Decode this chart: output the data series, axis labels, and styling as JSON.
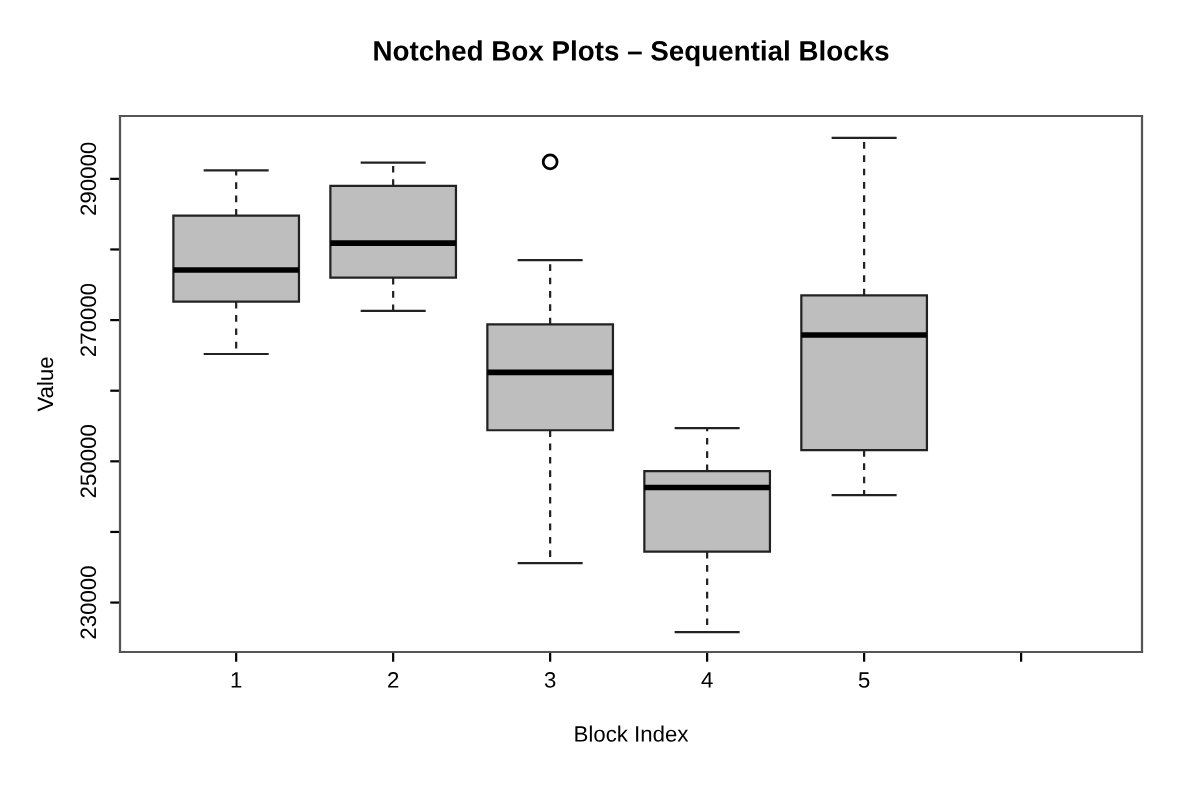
{
  "chart_data": {
    "type": "box",
    "title": "Notched Box Plots – Sequential Blocks",
    "xlabel": "Block Index",
    "ylabel": "Value",
    "x": [
      1,
      2,
      3,
      4,
      5
    ],
    "boxes": [
      {
        "low": 265200,
        "q1": 272600,
        "median": 277100,
        "q3": 284800,
        "high": 291200
      },
      {
        "low": 271300,
        "q1": 276000,
        "median": 280900,
        "q3": 289000,
        "high": 292300
      },
      {
        "low": 235600,
        "q1": 254400,
        "median": 262600,
        "q3": 269400,
        "high": 278500,
        "outliers": [
          292400
        ]
      },
      {
        "low": 225800,
        "q1": 237200,
        "median": 246300,
        "q3": 248600,
        "high": 254700
      },
      {
        "low": 245200,
        "q1": 251600,
        "median": 267900,
        "q3": 273500,
        "high": 295800
      }
    ],
    "color": "#bebebe",
    "xlim": [
      0.26,
      6.77
    ],
    "xticks": [
      1,
      2,
      3,
      4,
      5,
      {
        "value": 6,
        "label": null
      }
    ],
    "ylim": [
      223000,
      298900
    ],
    "yticks": [
      230000,
      {
        "value": 240000,
        "label": null
      },
      250000,
      {
        "value": 260000,
        "label": null
      },
      270000,
      {
        "value": 280000,
        "label": null
      },
      290000
    ],
    "grid": false,
    "legend": false
  }
}
